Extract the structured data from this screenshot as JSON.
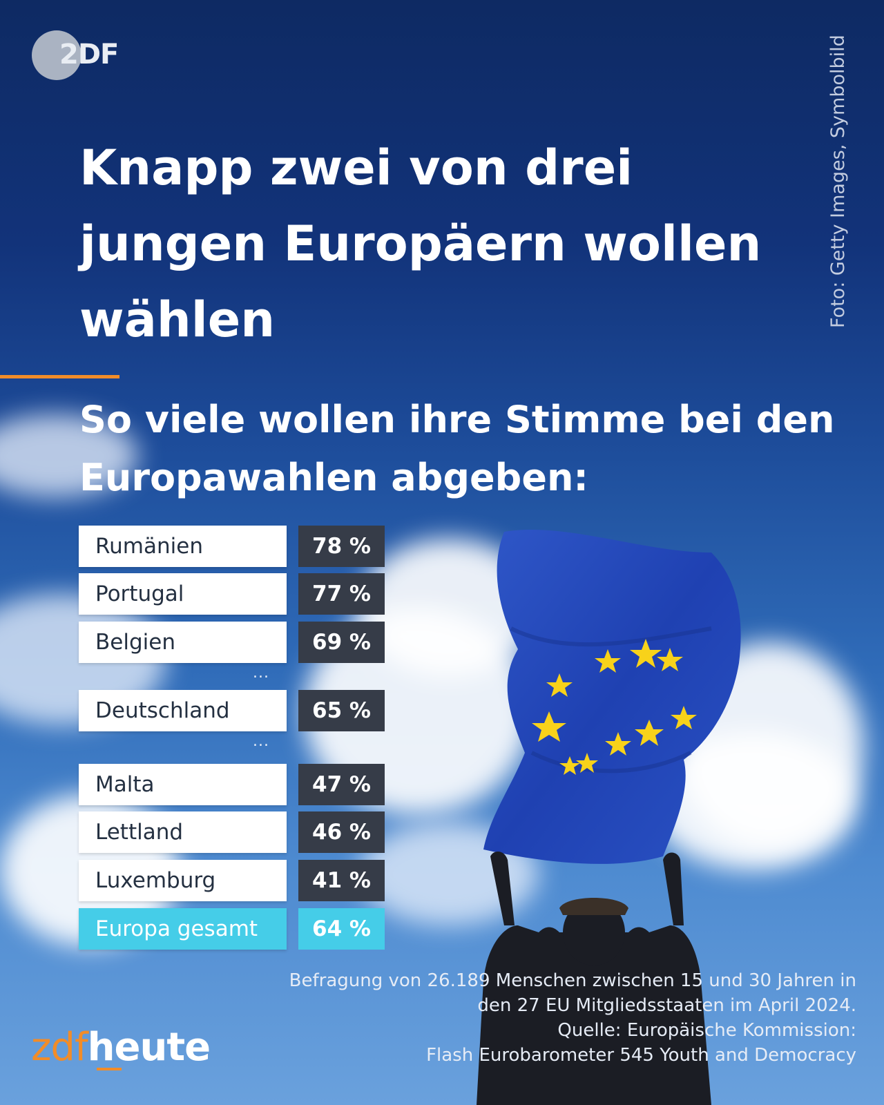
{
  "logo": {
    "text": "2DF"
  },
  "photo_credit": "Foto: Getty Images, Symbolbild",
  "chart_data": {
    "type": "table",
    "title": "Knapp zwei von drei jungen Europäern wollen wählen",
    "subtitle": "So viele wollen ihre Stimme bei den Europawahlen abgeben:",
    "rows": [
      {
        "country": "Rumänien",
        "value": 78,
        "label": "78 %"
      },
      {
        "country": "Portugal",
        "value": 77,
        "label": "77 %"
      },
      {
        "country": "Belgien",
        "value": 69,
        "label": "69 %"
      },
      {
        "country": "Deutschland",
        "value": 65,
        "label": "65 %"
      },
      {
        "country": "Malta",
        "value": 47,
        "label": "47 %"
      },
      {
        "country": "Lettland",
        "value": 46,
        "label": "46 %"
      },
      {
        "country": "Luxemburg",
        "value": 41,
        "label": "41 %"
      }
    ],
    "gaps": [
      "...",
      "..."
    ],
    "total": {
      "country": "Europa gesamt",
      "value": 64,
      "label": "64 %"
    }
  },
  "footnote": {
    "line1": "Befragung von 26.189 Menschen zwischen 15 und 30 Jahren in",
    "line2": "den 27 EU Mitgliedsstaaten im April 2024.",
    "line3": "Quelle: Europäische Kommission:",
    "line4": "Flash Eurobarometer 545 Youth and Democracy"
  },
  "brand": {
    "part1": "zdf",
    "part2": "heute"
  },
  "colors": {
    "accent": "#f28c28",
    "total_highlight": "#45cde8",
    "value_box": "#363c48",
    "sky": "#1d4c9a"
  }
}
